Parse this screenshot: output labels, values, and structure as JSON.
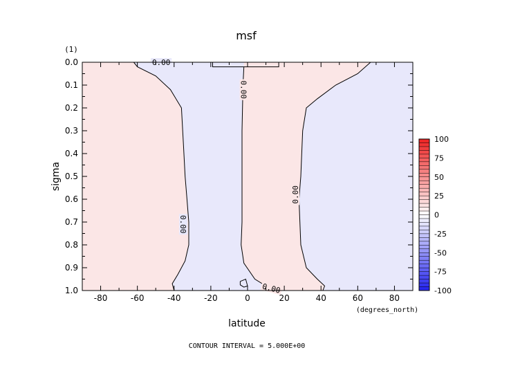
{
  "chart_data": {
    "type": "contour",
    "title": "msf",
    "units": "(1)",
    "xlabel": "latitude",
    "xunits": "(degrees_north)",
    "ylabel": "sigma",
    "footer": "CONTOUR INTERVAL = 5.000E+00",
    "xlim": [
      -90,
      90
    ],
    "ylim": [
      1.0,
      0.0
    ],
    "y_inverted": true,
    "x_ticks": [
      -80,
      -60,
      -40,
      -20,
      0,
      20,
      40,
      60,
      80
    ],
    "x_tick_labels": [
      "-80",
      "-60",
      "-40",
      "-20",
      "0",
      "20",
      "40",
      "60",
      "80"
    ],
    "y_ticks": [
      0.0,
      0.1,
      0.2,
      0.3,
      0.4,
      0.5,
      0.6,
      0.7,
      0.8,
      0.9,
      1.0
    ],
    "y_tick_labels": [
      "0.0",
      "0.1",
      "0.2",
      "0.3",
      "0.4",
      "0.5",
      "0.6",
      "0.7",
      "0.8",
      "0.9",
      "1.0"
    ],
    "contour_interval": 5.0,
    "contour_labels": [
      "0.00",
      "0.00",
      "0.00",
      "0.00",
      "0.00"
    ],
    "zero_contours": [
      {
        "name": "sh-boundary",
        "points": [
          [
            -62,
            0.0
          ],
          [
            -60,
            0.02
          ],
          [
            -50,
            0.06
          ],
          [
            -42,
            0.12
          ],
          [
            -36,
            0.2
          ],
          [
            -35,
            0.35
          ],
          [
            -34,
            0.5
          ],
          [
            -33,
            0.6
          ],
          [
            -32,
            0.7
          ],
          [
            -32,
            0.8
          ],
          [
            -34,
            0.87
          ],
          [
            -38,
            0.93
          ],
          [
            -41,
            0.97
          ],
          [
            -40,
            1.0
          ]
        ]
      },
      {
        "name": "equatorial",
        "points": [
          [
            -2,
            0.02
          ],
          [
            -2.5,
            0.1
          ],
          [
            -3,
            0.3
          ],
          [
            -3,
            0.5
          ],
          [
            -3,
            0.7
          ],
          [
            -3.5,
            0.8
          ],
          [
            -2,
            0.88
          ],
          [
            4,
            0.95
          ],
          [
            10,
            0.98
          ],
          [
            18,
            1.0
          ]
        ]
      },
      {
        "name": "nh-boundary",
        "points": [
          [
            67,
            0.0
          ],
          [
            60,
            0.05
          ],
          [
            48,
            0.1
          ],
          [
            38,
            0.16
          ],
          [
            32,
            0.2
          ],
          [
            30,
            0.3
          ],
          [
            29,
            0.5
          ],
          [
            28,
            0.6
          ],
          [
            28.5,
            0.7
          ],
          [
            29,
            0.8
          ],
          [
            32,
            0.9
          ],
          [
            38,
            0.95
          ],
          [
            42,
            0.98
          ],
          [
            41,
            1.0
          ]
        ]
      },
      {
        "name": "top-box",
        "points": [
          [
            -19,
            0.0
          ],
          [
            -19,
            0.02
          ],
          [
            17,
            0.02
          ],
          [
            17,
            0.0
          ]
        ]
      },
      {
        "name": "surface-blob",
        "points": [
          [
            -4,
            0.96
          ],
          [
            -1,
            0.95
          ],
          [
            0,
            0.98
          ],
          [
            -2,
            0.985
          ],
          [
            -4,
            0.975
          ],
          [
            -4,
            0.96
          ]
        ]
      }
    ],
    "regions": [
      {
        "name": "sh-extratropics",
        "sign": "positive",
        "xrange": [
          -90,
          -40
        ]
      },
      {
        "name": "sh-tropics",
        "sign": "negative",
        "xrange": [
          -40,
          -3
        ]
      },
      {
        "name": "nh-tropics",
        "sign": "positive",
        "xrange": [
          -3,
          40
        ]
      },
      {
        "name": "nh-extratropics",
        "sign": "negative",
        "xrange": [
          40,
          90
        ]
      }
    ],
    "colorbar": {
      "min": -100,
      "max": 100,
      "tick_values": [
        100,
        75,
        50,
        25,
        0,
        -25,
        -50,
        -75,
        -100
      ],
      "tick_labels": [
        "100",
        "75",
        "50",
        "25",
        "0",
        "-25",
        "-50",
        "-75",
        "-100"
      ],
      "positive_color": "#ee2222",
      "negative_color": "#2222ee",
      "neutral_color": "#ffffff"
    },
    "colors": {
      "positive_fill": "#fbe6e6",
      "negative_fill": "#e8e8fb",
      "contour_line": "#000000"
    },
    "grid": false
  }
}
